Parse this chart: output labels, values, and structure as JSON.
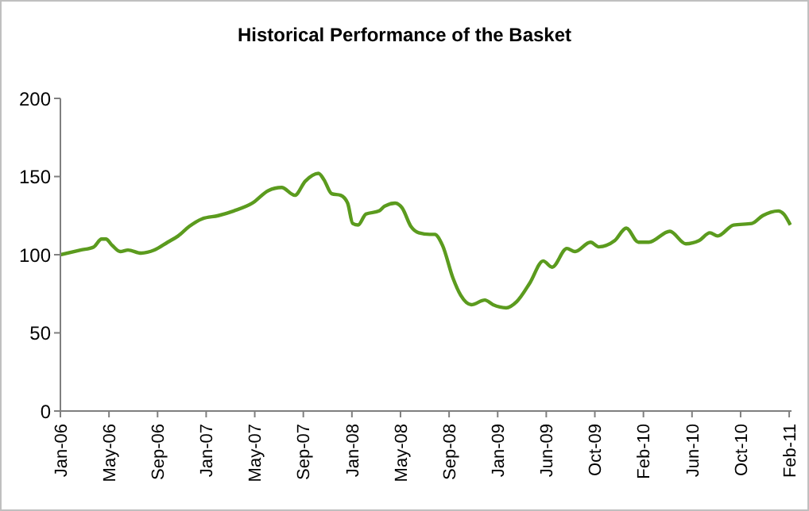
{
  "chart_data": {
    "type": "line",
    "title": "Historical Performance of the Basket",
    "x": [
      "2006-01-01",
      "2006-02-22",
      "2006-03-28",
      "2006-04-17",
      "2006-04-28",
      "2006-05-14",
      "2006-06-04",
      "2006-06-24",
      "2006-07-28",
      "2006-08-31",
      "2006-10-04",
      "2006-10-31",
      "2006-11-28",
      "2007-01-01",
      "2007-02-11",
      "2007-03-23",
      "2007-05-10",
      "2007-06-20",
      "2007-07-24",
      "2007-08-27",
      "2007-09-23",
      "2007-10-27",
      "2007-11-10",
      "2007-11-30",
      "2007-12-23",
      "2008-01-10",
      "2008-01-23",
      "2008-02-06",
      "2008-02-26",
      "2008-03-31",
      "2008-04-14",
      "2008-05-11",
      "2008-05-29",
      "2008-06-21",
      "2008-07-11",
      "2008-08-08",
      "2008-08-21",
      "2008-09-10",
      "2008-10-07",
      "2008-10-27",
      "2008-11-23",
      "2008-12-28",
      "2009-01-18",
      "2009-02-21",
      "2009-03-20",
      "2009-04-23",
      "2009-05-27",
      "2009-06-19",
      "2009-07-27",
      "2009-08-17",
      "2009-09-26",
      "2009-10-17",
      "2009-11-27",
      "2009-12-27",
      "2010-01-27",
      "2010-02-23",
      "2010-04-18",
      "2010-05-29",
      "2010-07-02",
      "2010-07-30",
      "2010-08-19",
      "2010-09-29",
      "2010-11-15",
      "2010-12-13",
      "2011-01-22",
      "2011-02-05",
      "2011-02-22"
    ],
    "series": [
      {
        "color": "#5b9b1e",
        "values": [
          100,
          103,
          105,
          110,
          110,
          106,
          102,
          103,
          101,
          103,
          108,
          112,
          118,
          123,
          125,
          128,
          133,
          141,
          143,
          138,
          147,
          152,
          148,
          139,
          138,
          133,
          120,
          119,
          126,
          128,
          131,
          133,
          130,
          118,
          114,
          113,
          113,
          106,
          85,
          74,
          68,
          71,
          68,
          66,
          70,
          82,
          96,
          92,
          104,
          102,
          108,
          105,
          109,
          117,
          108,
          108,
          115,
          107,
          109,
          114,
          112,
          119,
          120,
          125,
          128,
          126,
          119
        ]
      }
    ],
    "ylim": [
      0,
      200
    ],
    "yticks": [
      0,
      50,
      100,
      150,
      200
    ],
    "xlim": [
      "2006-01-01",
      "2011-02-25"
    ],
    "xticks": [
      {
        "value": "2006-01-01",
        "label": "Jan-06"
      },
      {
        "value": "2006-05-06",
        "label": "May-06"
      },
      {
        "value": "2006-09-08",
        "label": "Sep-06"
      },
      {
        "value": "2007-01-11",
        "label": "Jan-07"
      },
      {
        "value": "2007-05-16",
        "label": "May-07"
      },
      {
        "value": "2007-09-18",
        "label": "Sep-07"
      },
      {
        "value": "2008-01-21",
        "label": "Jan-08"
      },
      {
        "value": "2008-05-25",
        "label": "May-08"
      },
      {
        "value": "2008-09-27",
        "label": "Sep-08"
      },
      {
        "value": "2009-01-30",
        "label": "Jan-09"
      },
      {
        "value": "2009-06-04",
        "label": "Jun-09"
      },
      {
        "value": "2009-10-07",
        "label": "Oct-09"
      },
      {
        "value": "2010-02-09",
        "label": "Feb-10"
      },
      {
        "value": "2010-06-14",
        "label": "Jun-10"
      },
      {
        "value": "2010-10-17",
        "label": "Oct-10"
      },
      {
        "value": "2011-02-19",
        "label": "Feb-11"
      }
    ],
    "grid": false,
    "legend": false,
    "marker": "none",
    "line_style": "solid"
  }
}
